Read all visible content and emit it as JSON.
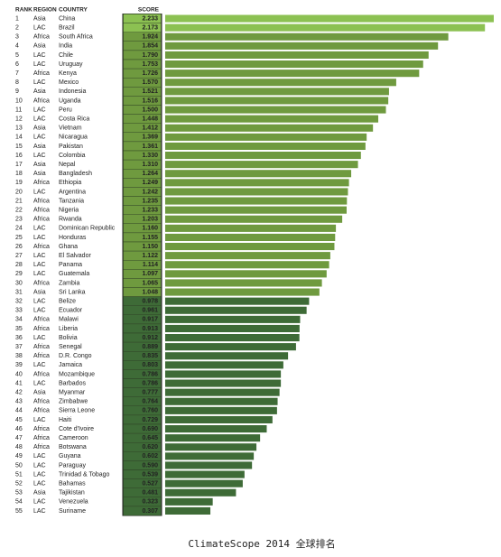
{
  "chart_data": {
    "type": "bar",
    "orientation": "horizontal",
    "column_headers": [
      "RANK",
      "REGION",
      "COUNTRY",
      "SCORE"
    ],
    "ranks": [
      1,
      2,
      3,
      4,
      5,
      6,
      7,
      8,
      9,
      10,
      11,
      12,
      13,
      14,
      15,
      16,
      17,
      18,
      19,
      20,
      21,
      22,
      23,
      24,
      25,
      26,
      27,
      28,
      29,
      30,
      31,
      32,
      33,
      34,
      35,
      36,
      37,
      38,
      39,
      40,
      41,
      42,
      43,
      44,
      45,
      46,
      47,
      48,
      49,
      50,
      51,
      52,
      53,
      54,
      55
    ],
    "regions": [
      "Asia",
      "LAC",
      "Africa",
      "Asia",
      "LAC",
      "LAC",
      "Africa",
      "LAC",
      "Asia",
      "Africa",
      "LAC",
      "LAC",
      "Asia",
      "LAC",
      "Asia",
      "LAC",
      "Asia",
      "Asia",
      "Africa",
      "LAC",
      "Africa",
      "Africa",
      "Africa",
      "LAC",
      "LAC",
      "Africa",
      "LAC",
      "LAC",
      "LAC",
      "Africa",
      "Asia",
      "LAC",
      "LAC",
      "Africa",
      "Africa",
      "LAC",
      "Africa",
      "Africa",
      "LAC",
      "Africa",
      "LAC",
      "Asia",
      "Africa",
      "Africa",
      "LAC",
      "Africa",
      "Africa",
      "Africa",
      "LAC",
      "LAC",
      "LAC",
      "LAC",
      "Asia",
      "LAC",
      "LAC"
    ],
    "categories": [
      "China",
      "Brazil",
      "South Africa",
      "India",
      "Chile",
      "Uruguay",
      "Kenya",
      "Mexico",
      "Indonesia",
      "Uganda",
      "Peru",
      "Costa Rica",
      "Vietnam",
      "Nicaragua",
      "Pakistan",
      "Colombia",
      "Nepal",
      "Bangladesh",
      "Ethiopia",
      "Argentina",
      "Tanzania",
      "Nigeria",
      "Rwanda",
      "Dominican Republic",
      "Honduras",
      "Ghana",
      "El Salvador",
      "Panama",
      "Guatemala",
      "Zambia",
      "Sri Lanka",
      "Belize",
      "Ecuador",
      "Malawi",
      "Liberia",
      "Bolivia",
      "Senegal",
      "D.R. Congo",
      "Jamaica",
      "Mozambique",
      "Barbados",
      "Myanmar",
      "Zimbabwe",
      "Sierra Leone",
      "Haiti",
      "Cote d'Ivoire",
      "Cameroon",
      "Botswana",
      "Guyana",
      "Paraguay",
      "Trinidad & Tobago",
      "Bahamas",
      "Tajikistan",
      "Venezuela",
      "Suriname"
    ],
    "values": [
      2.233,
      2.173,
      1.924,
      1.854,
      1.79,
      1.753,
      1.726,
      1.57,
      1.521,
      1.516,
      1.5,
      1.448,
      1.412,
      1.369,
      1.361,
      1.33,
      1.31,
      1.264,
      1.249,
      1.242,
      1.235,
      1.233,
      1.203,
      1.16,
      1.155,
      1.15,
      1.122,
      1.114,
      1.097,
      1.065,
      1.048,
      0.978,
      0.961,
      0.917,
      0.913,
      0.912,
      0.889,
      0.835,
      0.803,
      0.786,
      0.786,
      0.777,
      0.764,
      0.76,
      0.729,
      0.69,
      0.645,
      0.62,
      0.602,
      0.59,
      0.539,
      0.527,
      0.481,
      0.323,
      0.307
    ],
    "value_labels": [
      "2.233",
      "2.173",
      "1.924",
      "1.854",
      "1.790",
      "1.753",
      "1.726",
      "1.570",
      "1.521",
      "1.516",
      "1.500",
      "1.448",
      "1.412",
      "1.369",
      "1.361",
      "1.330",
      "1.310",
      "1.264",
      "1.249",
      "1.242",
      "1.235",
      "1.233",
      "1.203",
      "1.160",
      "1.155",
      "1.150",
      "1.122",
      "1.114",
      "1.097",
      "1.065",
      "1.048",
      "0.978",
      "0.961",
      "0.917",
      "0.913",
      "0.912",
      "0.889",
      "0.835",
      "0.803",
      "0.786",
      "0.786",
      "0.777",
      "0.764",
      "0.760",
      "0.729",
      "0.690",
      "0.645",
      "0.620",
      "0.602",
      "0.590",
      "0.539",
      "0.527",
      "0.481",
      "0.323",
      "0.307"
    ],
    "colors": [
      "#8cc152",
      "#8cc152",
      "#6f9a3f",
      "#6f9a3f",
      "#6f9a3f",
      "#6f9a3f",
      "#6f9a3f",
      "#6f9a3f",
      "#6f9a3f",
      "#6f9a3f",
      "#6f9a3f",
      "#6f9a3f",
      "#6f9a3f",
      "#6f9a3f",
      "#6f9a3f",
      "#6f9a3f",
      "#6f9a3f",
      "#6f9a3f",
      "#6f9a3f",
      "#6f9a3f",
      "#6f9a3f",
      "#6f9a3f",
      "#6f9a3f",
      "#6f9a3f",
      "#6f9a3f",
      "#6f9a3f",
      "#6f9a3f",
      "#6f9a3f",
      "#6f9a3f",
      "#6f9a3f",
      "#6f9a3f",
      "#3e6b37",
      "#3e6b37",
      "#3e6b37",
      "#3e6b37",
      "#3e6b37",
      "#3e6b37",
      "#3e6b37",
      "#3e6b37",
      "#3e6b37",
      "#3e6b37",
      "#3e6b37",
      "#3e6b37",
      "#3e6b37",
      "#3e6b37",
      "#3e6b37",
      "#3e6b37",
      "#3e6b37",
      "#3e6b37",
      "#3e6b37",
      "#3e6b37",
      "#3e6b37",
      "#3e6b37",
      "#3e6b37",
      "#3e6b37"
    ],
    "caption": "ClimateScope 2014 全球排名"
  }
}
